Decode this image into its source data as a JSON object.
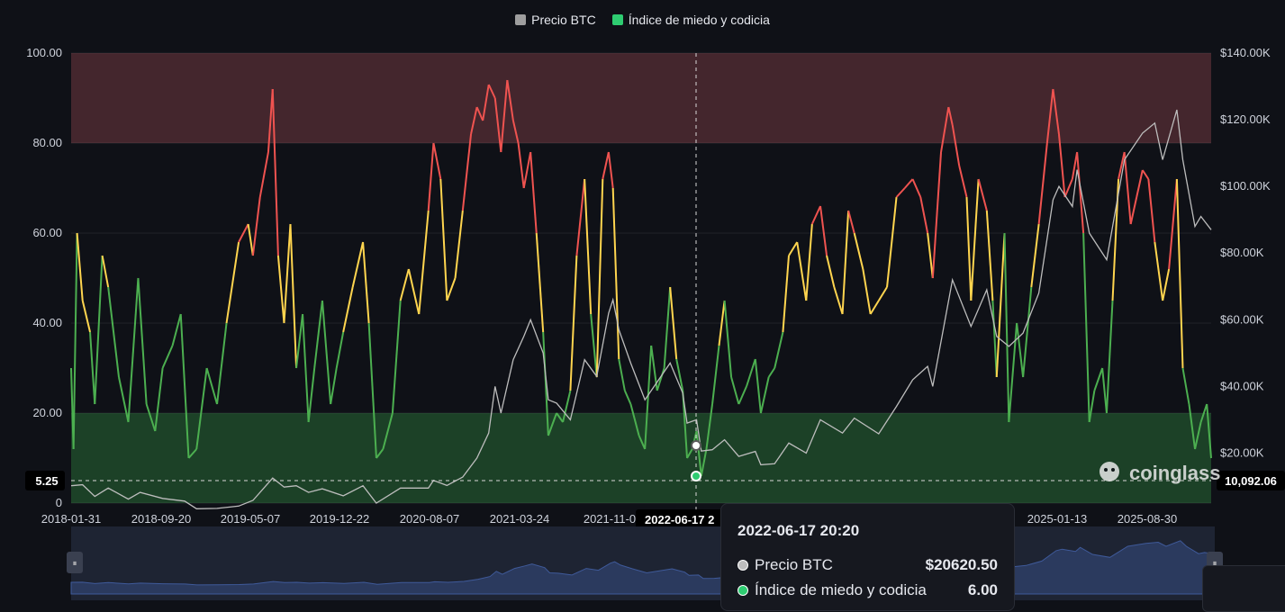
{
  "legend": {
    "btc_label": "Precio BTC",
    "fgi_label": "Índice de miedo y codicia",
    "btc_color": "#9e9e9e",
    "fgi_color": "#2ecc71"
  },
  "colors": {
    "background": "#0f1117",
    "fear_zone": "#1f4a2a",
    "greed_zone": "#4e2a31",
    "green": "#4caf50",
    "yellow": "#ffd54f",
    "red": "#ef5350",
    "btc_line": "#bdbdbd",
    "navigator": "#2b3a5e"
  },
  "tooltip": {
    "time": "2022-06-17 20:20",
    "btc_label": "Precio BTC",
    "btc_value": "$20620.50",
    "fgi_label": "Índice de miedo y codicia",
    "fgi_value": "6.00"
  },
  "crosshair": {
    "x_date_label": "2022-06-17 2",
    "left_value_label": "5.25",
    "right_value_label": "10,092.06"
  },
  "watermark": "coinglass",
  "chart_data": {
    "type": "line",
    "x_tick_labels": [
      "2018-01-31",
      "2018-09-20",
      "2019-05-07",
      "2019-12-22",
      "2020-08-07",
      "2021-03-24",
      "2021-11-0",
      "2025-01-13",
      "2025-08-30"
    ],
    "y_left_ticks": [
      "0",
      "20.00",
      "40.00",
      "60.00",
      "80.00",
      "100.00"
    ],
    "y_right_ticks": [
      "$20.00K",
      "$40.00K",
      "$60.00K",
      "$80.00K",
      "$100.00K",
      "$120.00K",
      "$140.00K"
    ],
    "ylim_left": [
      0,
      100
    ],
    "ylim_right": [
      5000,
      140000
    ],
    "xlim": [
      "2018-01-31",
      "2025-12-31"
    ],
    "zones": [
      {
        "from": 0,
        "to": 20
      },
      {
        "from": 80,
        "to": 100
      }
    ],
    "color_thresholds": [
      40,
      60
    ],
    "series": [
      {
        "name": "Índice de miedo y codicia",
        "axis": "left",
        "points": [
          [
            "2018-01-31",
            30
          ],
          [
            "2018-02-06",
            12
          ],
          [
            "2018-02-15",
            60
          ],
          [
            "2018-03-01",
            45
          ],
          [
            "2018-03-20",
            38
          ],
          [
            "2018-04-01",
            22
          ],
          [
            "2018-04-20",
            55
          ],
          [
            "2018-05-05",
            48
          ],
          [
            "2018-06-01",
            28
          ],
          [
            "2018-06-25",
            18
          ],
          [
            "2018-07-20",
            50
          ],
          [
            "2018-08-10",
            22
          ],
          [
            "2018-09-01",
            16
          ],
          [
            "2018-09-20",
            30
          ],
          [
            "2018-10-15",
            35
          ],
          [
            "2018-11-05",
            42
          ],
          [
            "2018-11-25",
            10
          ],
          [
            "2018-12-15",
            12
          ],
          [
            "2019-01-10",
            30
          ],
          [
            "2019-02-05",
            22
          ],
          [
            "2019-03-01",
            40
          ],
          [
            "2019-04-01",
            58
          ],
          [
            "2019-04-25",
            62
          ],
          [
            "2019-05-07",
            55
          ],
          [
            "2019-05-25",
            68
          ],
          [
            "2019-06-15",
            78
          ],
          [
            "2019-06-26",
            92
          ],
          [
            "2019-07-10",
            55
          ],
          [
            "2019-07-25",
            40
          ],
          [
            "2019-08-10",
            62
          ],
          [
            "2019-08-25",
            30
          ],
          [
            "2019-09-10",
            42
          ],
          [
            "2019-09-25",
            18
          ],
          [
            "2019-10-10",
            30
          ],
          [
            "2019-10-30",
            45
          ],
          [
            "2019-11-20",
            22
          ],
          [
            "2019-12-05",
            30
          ],
          [
            "2019-12-22",
            38
          ],
          [
            "2020-01-15",
            48
          ],
          [
            "2020-02-10",
            58
          ],
          [
            "2020-02-25",
            40
          ],
          [
            "2020-03-15",
            10
          ],
          [
            "2020-04-01",
            12
          ],
          [
            "2020-04-25",
            20
          ],
          [
            "2020-05-15",
            45
          ],
          [
            "2020-06-05",
            52
          ],
          [
            "2020-07-01",
            42
          ],
          [
            "2020-07-25",
            65
          ],
          [
            "2020-08-07",
            80
          ],
          [
            "2020-08-25",
            72
          ],
          [
            "2020-09-10",
            45
          ],
          [
            "2020-10-01",
            50
          ],
          [
            "2020-10-20",
            65
          ],
          [
            "2020-11-10",
            82
          ],
          [
            "2020-11-25",
            88
          ],
          [
            "2020-12-10",
            85
          ],
          [
            "2020-12-25",
            93
          ],
          [
            "2021-01-10",
            90
          ],
          [
            "2021-01-25",
            78
          ],
          [
            "2021-02-10",
            94
          ],
          [
            "2021-02-25",
            85
          ],
          [
            "2021-03-10",
            80
          ],
          [
            "2021-03-24",
            70
          ],
          [
            "2021-04-10",
            78
          ],
          [
            "2021-04-25",
            60
          ],
          [
            "2021-05-12",
            38
          ],
          [
            "2021-05-25",
            15
          ],
          [
            "2021-06-15",
            20
          ],
          [
            "2021-07-01",
            18
          ],
          [
            "2021-07-20",
            25
          ],
          [
            "2021-08-05",
            55
          ],
          [
            "2021-08-25",
            72
          ],
          [
            "2021-09-10",
            42
          ],
          [
            "2021-09-25",
            28
          ],
          [
            "2021-10-10",
            72
          ],
          [
            "2021-10-25",
            78
          ],
          [
            "2021-11-05",
            70
          ],
          [
            "2021-11-20",
            32
          ],
          [
            "2021-12-05",
            25
          ],
          [
            "2021-12-20",
            22
          ],
          [
            "2022-01-10",
            15
          ],
          [
            "2022-01-25",
            12
          ],
          [
            "2022-02-10",
            35
          ],
          [
            "2022-02-25",
            25
          ],
          [
            "2022-03-15",
            30
          ],
          [
            "2022-03-30",
            48
          ],
          [
            "2022-04-15",
            32
          ],
          [
            "2022-05-01",
            25
          ],
          [
            "2022-05-12",
            10
          ],
          [
            "2022-05-25",
            12
          ],
          [
            "2022-06-05",
            16
          ],
          [
            "2022-06-17",
            6
          ],
          [
            "2022-06-30",
            12
          ],
          [
            "2022-07-15",
            22
          ],
          [
            "2022-08-01",
            35
          ],
          [
            "2022-08-15",
            45
          ],
          [
            "2022-09-01",
            28
          ],
          [
            "2022-09-20",
            22
          ],
          [
            "2022-10-10",
            26
          ],
          [
            "2022-11-01",
            32
          ],
          [
            "2022-11-15",
            20
          ],
          [
            "2022-12-05",
            28
          ],
          [
            "2022-12-20",
            30
          ],
          [
            "2023-01-10",
            38
          ],
          [
            "2023-01-25",
            55
          ],
          [
            "2023-02-15",
            58
          ],
          [
            "2023-03-10",
            45
          ],
          [
            "2023-03-25",
            62
          ],
          [
            "2023-04-15",
            66
          ],
          [
            "2023-05-01",
            55
          ],
          [
            "2023-05-20",
            48
          ],
          [
            "2023-06-10",
            42
          ],
          [
            "2023-06-25",
            65
          ],
          [
            "2023-07-10",
            60
          ],
          [
            "2023-08-01",
            52
          ],
          [
            "2023-08-20",
            42
          ],
          [
            "2023-09-10",
            45
          ],
          [
            "2023-10-01",
            48
          ],
          [
            "2023-10-25",
            68
          ],
          [
            "2023-11-15",
            70
          ],
          [
            "2023-12-05",
            72
          ],
          [
            "2023-12-25",
            68
          ],
          [
            "2024-01-12",
            60
          ],
          [
            "2024-01-25",
            50
          ],
          [
            "2024-02-15",
            78
          ],
          [
            "2024-03-05",
            88
          ],
          [
            "2024-03-15",
            84
          ],
          [
            "2024-04-01",
            75
          ],
          [
            "2024-04-20",
            68
          ],
          [
            "2024-05-01",
            45
          ],
          [
            "2024-05-20",
            72
          ],
          [
            "2024-06-10",
            65
          ],
          [
            "2024-06-25",
            45
          ],
          [
            "2024-07-05",
            28
          ],
          [
            "2024-07-25",
            60
          ],
          [
            "2024-08-05",
            18
          ],
          [
            "2024-08-25",
            40
          ],
          [
            "2024-09-10",
            28
          ],
          [
            "2024-10-01",
            48
          ],
          [
            "2024-10-20",
            62
          ],
          [
            "2024-11-10",
            80
          ],
          [
            "2024-11-25",
            92
          ],
          [
            "2024-12-10",
            82
          ],
          [
            "2024-12-25",
            68
          ],
          [
            "2025-01-13",
            72
          ],
          [
            "2025-01-25",
            78
          ],
          [
            "2025-02-10",
            60
          ],
          [
            "2025-02-25",
            18
          ],
          [
            "2025-03-10",
            25
          ],
          [
            "2025-03-30",
            30
          ],
          [
            "2025-04-10",
            20
          ],
          [
            "2025-04-25",
            45
          ],
          [
            "2025-05-10",
            72
          ],
          [
            "2025-05-25",
            78
          ],
          [
            "2025-06-10",
            62
          ],
          [
            "2025-06-25",
            68
          ],
          [
            "2025-07-10",
            74
          ],
          [
            "2025-07-25",
            72
          ],
          [
            "2025-08-10",
            58
          ],
          [
            "2025-08-30",
            45
          ],
          [
            "2025-09-15",
            52
          ],
          [
            "2025-10-05",
            72
          ],
          [
            "2025-10-20",
            30
          ],
          [
            "2025-11-05",
            22
          ],
          [
            "2025-11-20",
            12
          ],
          [
            "2025-12-05",
            18
          ],
          [
            "2025-12-20",
            22
          ],
          [
            "2025-12-31",
            10
          ]
        ]
      },
      {
        "name": "Precio BTC",
        "axis": "right",
        "points": [
          [
            "2018-01-31",
            10200
          ],
          [
            "2018-03-01",
            10500
          ],
          [
            "2018-04-01",
            7000
          ],
          [
            "2018-05-05",
            9500
          ],
          [
            "2018-06-25",
            6200
          ],
          [
            "2018-07-25",
            8200
          ],
          [
            "2018-09-20",
            6400
          ],
          [
            "2018-11-15",
            5600
          ],
          [
            "2018-12-15",
            3300
          ],
          [
            "2019-02-05",
            3400
          ],
          [
            "2019-04-01",
            4100
          ],
          [
            "2019-05-07",
            5800
          ],
          [
            "2019-06-26",
            12500
          ],
          [
            "2019-07-25",
            9800
          ],
          [
            "2019-08-25",
            10200
          ],
          [
            "2019-09-25",
            8200
          ],
          [
            "2019-10-30",
            9300
          ],
          [
            "2019-12-22",
            7200
          ],
          [
            "2020-02-10",
            10200
          ],
          [
            "2020-03-15",
            5000
          ],
          [
            "2020-05-15",
            9500
          ],
          [
            "2020-07-25",
            9500
          ],
          [
            "2020-08-07",
            11800
          ],
          [
            "2020-09-10",
            10300
          ],
          [
            "2020-10-20",
            12800
          ],
          [
            "2020-11-25",
            18500
          ],
          [
            "2020-12-25",
            26000
          ],
          [
            "2021-01-10",
            40000
          ],
          [
            "2021-01-25",
            32000
          ],
          [
            "2021-02-25",
            48000
          ],
          [
            "2021-03-24",
            55000
          ],
          [
            "2021-04-10",
            60000
          ],
          [
            "2021-05-12",
            50000
          ],
          [
            "2021-05-25",
            36000
          ],
          [
            "2021-06-15",
            35000
          ],
          [
            "2021-07-20",
            30000
          ],
          [
            "2021-08-25",
            48000
          ],
          [
            "2021-09-25",
            43000
          ],
          [
            "2021-10-25",
            62000
          ],
          [
            "2021-11-05",
            66000
          ],
          [
            "2021-11-20",
            57000
          ],
          [
            "2021-12-20",
            47000
          ],
          [
            "2022-01-25",
            36000
          ],
          [
            "2022-03-30",
            47000
          ],
          [
            "2022-05-01",
            38000
          ],
          [
            "2022-05-12",
            29000
          ],
          [
            "2022-06-05",
            30000
          ],
          [
            "2022-06-17",
            20620
          ],
          [
            "2022-07-15",
            21000
          ],
          [
            "2022-08-15",
            24000
          ],
          [
            "2022-09-20",
            19000
          ],
          [
            "2022-11-01",
            20500
          ],
          [
            "2022-11-15",
            16500
          ],
          [
            "2022-12-20",
            16800
          ],
          [
            "2023-01-25",
            23000
          ],
          [
            "2023-03-10",
            20000
          ],
          [
            "2023-04-15",
            30000
          ],
          [
            "2023-06-10",
            26000
          ],
          [
            "2023-07-10",
            30500
          ],
          [
            "2023-09-10",
            25800
          ],
          [
            "2023-10-25",
            34000
          ],
          [
            "2023-12-05",
            42000
          ],
          [
            "2024-01-12",
            46000
          ],
          [
            "2024-01-25",
            40000
          ],
          [
            "2024-03-15",
            72000
          ],
          [
            "2024-05-01",
            58000
          ],
          [
            "2024-06-10",
            69000
          ],
          [
            "2024-07-05",
            55000
          ],
          [
            "2024-08-05",
            52000
          ],
          [
            "2024-09-10",
            56000
          ],
          [
            "2024-10-20",
            68000
          ],
          [
            "2024-11-25",
            96000
          ],
          [
            "2024-12-10",
            100000
          ],
          [
            "2025-01-13",
            94000
          ],
          [
            "2025-01-25",
            105000
          ],
          [
            "2025-02-25",
            86000
          ],
          [
            "2025-04-10",
            78000
          ],
          [
            "2025-05-25",
            108000
          ],
          [
            "2025-07-10",
            116000
          ],
          [
            "2025-08-10",
            119000
          ],
          [
            "2025-08-30",
            108000
          ],
          [
            "2025-10-05",
            123000
          ],
          [
            "2025-10-20",
            108000
          ],
          [
            "2025-11-20",
            88000
          ],
          [
            "2025-12-05",
            91000
          ],
          [
            "2025-12-31",
            87000
          ]
        ]
      }
    ]
  }
}
